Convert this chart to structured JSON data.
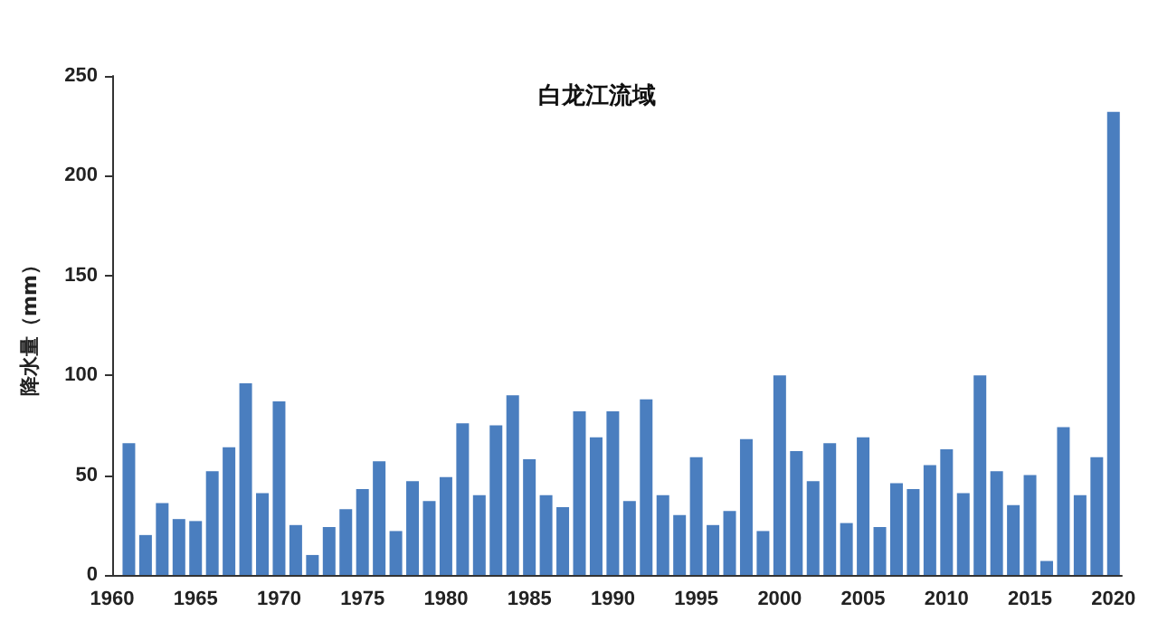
{
  "chart_data": {
    "type": "bar",
    "title": "白龙江流域",
    "ylabel": "降水量（mm）",
    "color": "#4a7ebf",
    "x": [
      1961,
      1962,
      1963,
      1964,
      1965,
      1966,
      1967,
      1968,
      1969,
      1970,
      1971,
      1972,
      1973,
      1974,
      1975,
      1976,
      1977,
      1978,
      1979,
      1980,
      1981,
      1982,
      1983,
      1984,
      1985,
      1986,
      1987,
      1988,
      1989,
      1990,
      1991,
      1992,
      1993,
      1994,
      1995,
      1996,
      1997,
      1998,
      1999,
      2000,
      2001,
      2002,
      2003,
      2004,
      2005,
      2006,
      2007,
      2008,
      2009,
      2010,
      2011,
      2012,
      2013,
      2014,
      2015,
      2016,
      2017,
      2018,
      2019,
      2020
    ],
    "values": [
      66,
      20,
      36,
      28,
      27,
      52,
      64,
      96,
      41,
      87,
      25,
      10,
      24,
      33,
      43,
      57,
      22,
      47,
      37,
      49,
      76,
      40,
      75,
      90,
      58,
      40,
      34,
      82,
      69,
      82,
      37,
      88,
      40,
      30,
      59,
      25,
      32,
      68,
      22,
      100,
      62,
      47,
      66,
      26,
      69,
      24,
      46,
      43,
      55,
      63,
      41,
      100,
      52,
      35,
      50,
      7,
      74,
      40,
      59,
      232
    ],
    "xlim": [
      1960,
      2020.5
    ],
    "xticks": [
      1960,
      1965,
      1970,
      1975,
      1980,
      1985,
      1990,
      1995,
      2000,
      2005,
      2010,
      2015,
      2020
    ],
    "ylim": [
      0,
      250
    ],
    "yticks": [
      0,
      50,
      100,
      150,
      200,
      250
    ],
    "grid": false
  }
}
